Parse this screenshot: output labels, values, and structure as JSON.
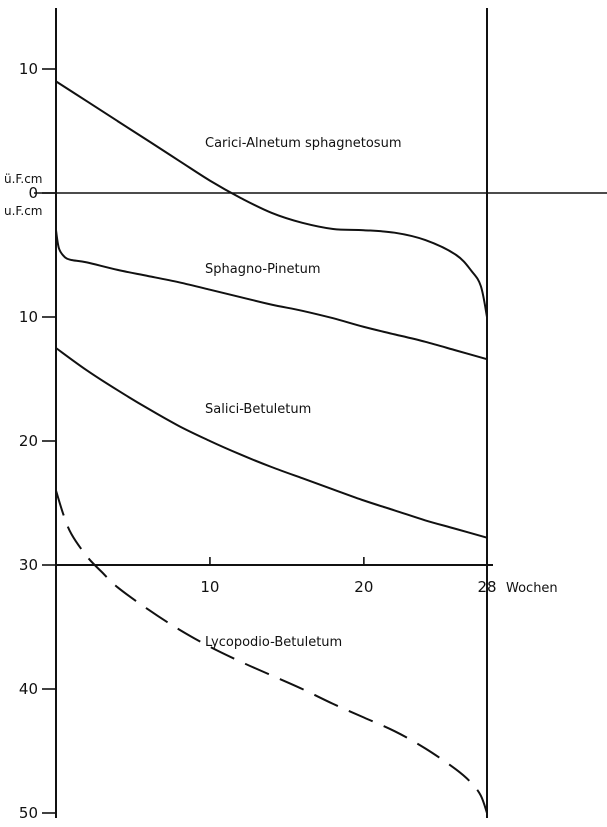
{
  "chart_data": {
    "type": "line",
    "xlabel": "Wochen",
    "x_ticks": [
      "10",
      "20",
      "28"
    ],
    "xlim": [
      0,
      28
    ],
    "ylim": [
      -10,
      50
    ],
    "y_ticks_above": [
      "10"
    ],
    "y_ticks_below": [
      "0",
      "10",
      "20",
      "30",
      "40",
      "50"
    ],
    "y_unit_above": "ü.F.cm",
    "y_unit_below": "u.F.cm",
    "grid": false,
    "legend": "none",
    "series": [
      {
        "name": "Carici-Alnetum sphagnetosum",
        "style": "solid",
        "x": [
          0,
          2,
          4,
          6,
          8,
          10,
          12,
          14,
          16,
          18,
          20,
          22,
          24,
          26,
          27,
          27.6,
          28
        ],
        "y": [
          -9,
          -7.4,
          -5.8,
          -4.2,
          -2.6,
          -1,
          0.4,
          1.6,
          2.4,
          2.9,
          3,
          3.2,
          3.8,
          5,
          6.3,
          7.5,
          10
        ]
      },
      {
        "name": "Sphagno-Pinetum",
        "style": "solid",
        "x": [
          0,
          0.2,
          0.6,
          1,
          2,
          4,
          6,
          8,
          10,
          12,
          14,
          16,
          18,
          20,
          22,
          24,
          26,
          28
        ],
        "y": [
          3,
          4.5,
          5.2,
          5.4,
          5.6,
          6.2,
          6.7,
          7.2,
          7.8,
          8.4,
          9,
          9.5,
          10.1,
          10.8,
          11.4,
          12,
          12.7,
          13.4
        ]
      },
      {
        "name": "Salici-Betuletum",
        "style": "solid",
        "x": [
          0,
          2,
          4,
          6,
          8,
          10,
          12,
          14,
          16,
          18,
          20,
          22,
          24,
          26,
          28
        ],
        "y": [
          12.5,
          14.3,
          15.9,
          17.4,
          18.8,
          20,
          21.1,
          22.1,
          23,
          23.9,
          24.8,
          25.6,
          26.4,
          27.1,
          27.8
        ]
      },
      {
        "name": "Lycopodio-Betuletum",
        "style": "dashed",
        "x": [
          0,
          0.5,
          1,
          2,
          3,
          4,
          6,
          8,
          10,
          12,
          14,
          16,
          18,
          20,
          22,
          24,
          26,
          27,
          27.6,
          28
        ],
        "y": [
          24,
          26,
          27.5,
          29.3,
          30.6,
          31.8,
          33.6,
          35.2,
          36.6,
          37.8,
          38.9,
          40,
          41.2,
          42.3,
          43.4,
          44.8,
          46.5,
          47.6,
          48.6,
          50
        ]
      }
    ]
  }
}
